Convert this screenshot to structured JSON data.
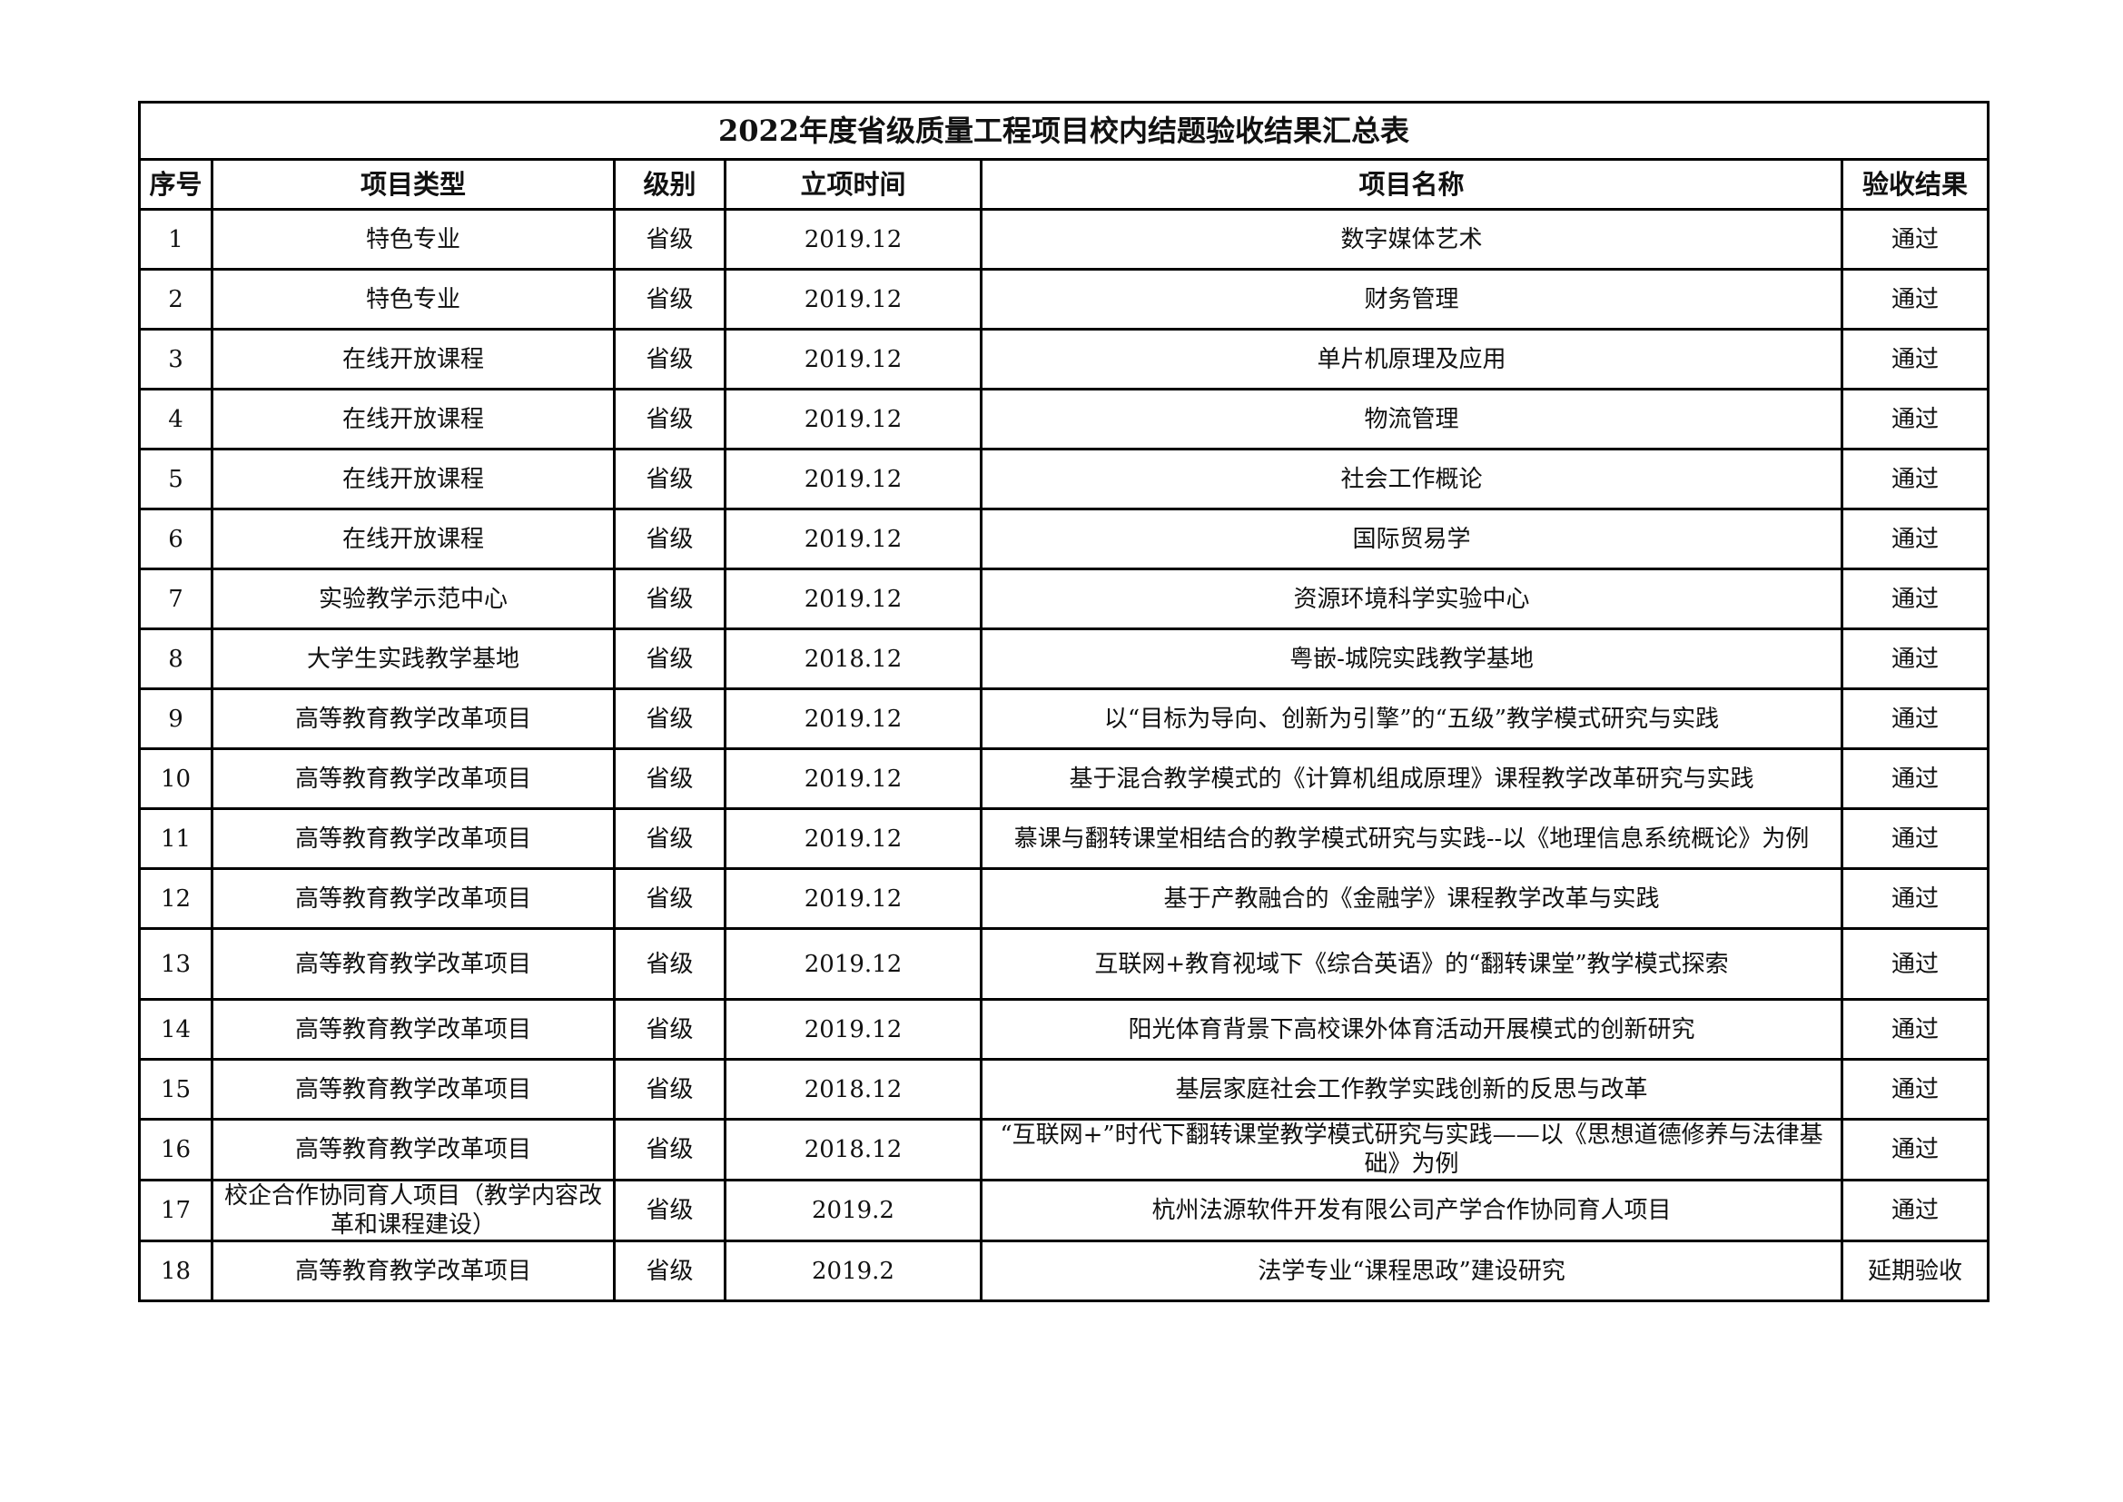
{
  "title": "2022年度省级质量工程项目校内结题验收结果汇总表",
  "columns": [
    "序号",
    "项目类型",
    "级别",
    "立项时间",
    "项目名称",
    "验收结果"
  ],
  "rows": [
    [
      "1",
      "特色专业",
      "省级",
      "2019.12",
      "数字媒体艺术",
      "通过"
    ],
    [
      "2",
      "特色专业",
      "省级",
      "2019.12",
      "财务管理",
      "通过"
    ],
    [
      "3",
      "在线开放课程",
      "省级",
      "2019.12",
      "单片机原理及应用",
      "通过"
    ],
    [
      "4",
      "在线开放课程",
      "省级",
      "2019.12",
      "物流管理",
      "通过"
    ],
    [
      "5",
      "在线开放课程",
      "省级",
      "2019.12",
      "社会工作概论",
      "通过"
    ],
    [
      "6",
      "在线开放课程",
      "省级",
      "2019.12",
      "国际贸易学",
      "通过"
    ],
    [
      "7",
      "实验教学示范中心",
      "省级",
      "2019.12",
      "资源环境科学实验中心",
      "通过"
    ],
    [
      "8",
      "大学生实践教学基地",
      "省级",
      "2018.12",
      "粤嵌-城院实践教学基地",
      "通过"
    ],
    [
      "9",
      "高等教育教学改革项目",
      "省级",
      "2019.12",
      "以“目标为导向、创新为引擎”的“五级”教学模式研究与实践",
      "通过"
    ],
    [
      "10",
      "高等教育教学改革项目",
      "省级",
      "2019.12",
      "基于混合教学模式的《计算机组成原理》课程教学改革研究与实践",
      "通过"
    ],
    [
      "11",
      "高等教育教学改革项目",
      "省级",
      "2019.12",
      "慕课与翻转课堂相结合的教学模式研究与实践--以《地理信息系统概论》为例",
      "通过"
    ],
    [
      "12",
      "高等教育教学改革项目",
      "省级",
      "2019.12",
      "基于产教融合的《金融学》课程教学改革与实践",
      "通过"
    ],
    [
      "13",
      "高等教育教学改革项目",
      "省级",
      "2019.12",
      "互联网+教育视域下《综合英语》的“翻转课堂”教学模式探索",
      "通过"
    ],
    [
      "14",
      "高等教育教学改革项目",
      "省级",
      "2019.12",
      "阳光体育背景下高校课外体育活动开展模式的创新研究",
      "通过"
    ],
    [
      "15",
      "高等教育教学改革项目",
      "省级",
      "2018.12",
      "基层家庭社会工作教学实践创新的反思与改革",
      "通过"
    ],
    [
      "16",
      "高等教育教学改革项目",
      "省级",
      "2018.12",
      "“互联网+”时代下翻转课堂教学模式研究与实践——以《思想道德修养与法律基础》为例",
      "通过"
    ],
    [
      "17",
      "校企合作协同育人项目（教学内容改革和课程建设）",
      "省级",
      "2019.2",
      "杭州法源软件开发有限公司产学合作协同育人项目",
      "通过"
    ],
    [
      "18",
      "高等教育教学改革项目",
      "省级",
      "2019.2",
      "法学专业“课程思政”建设研究",
      "延期验收"
    ]
  ]
}
